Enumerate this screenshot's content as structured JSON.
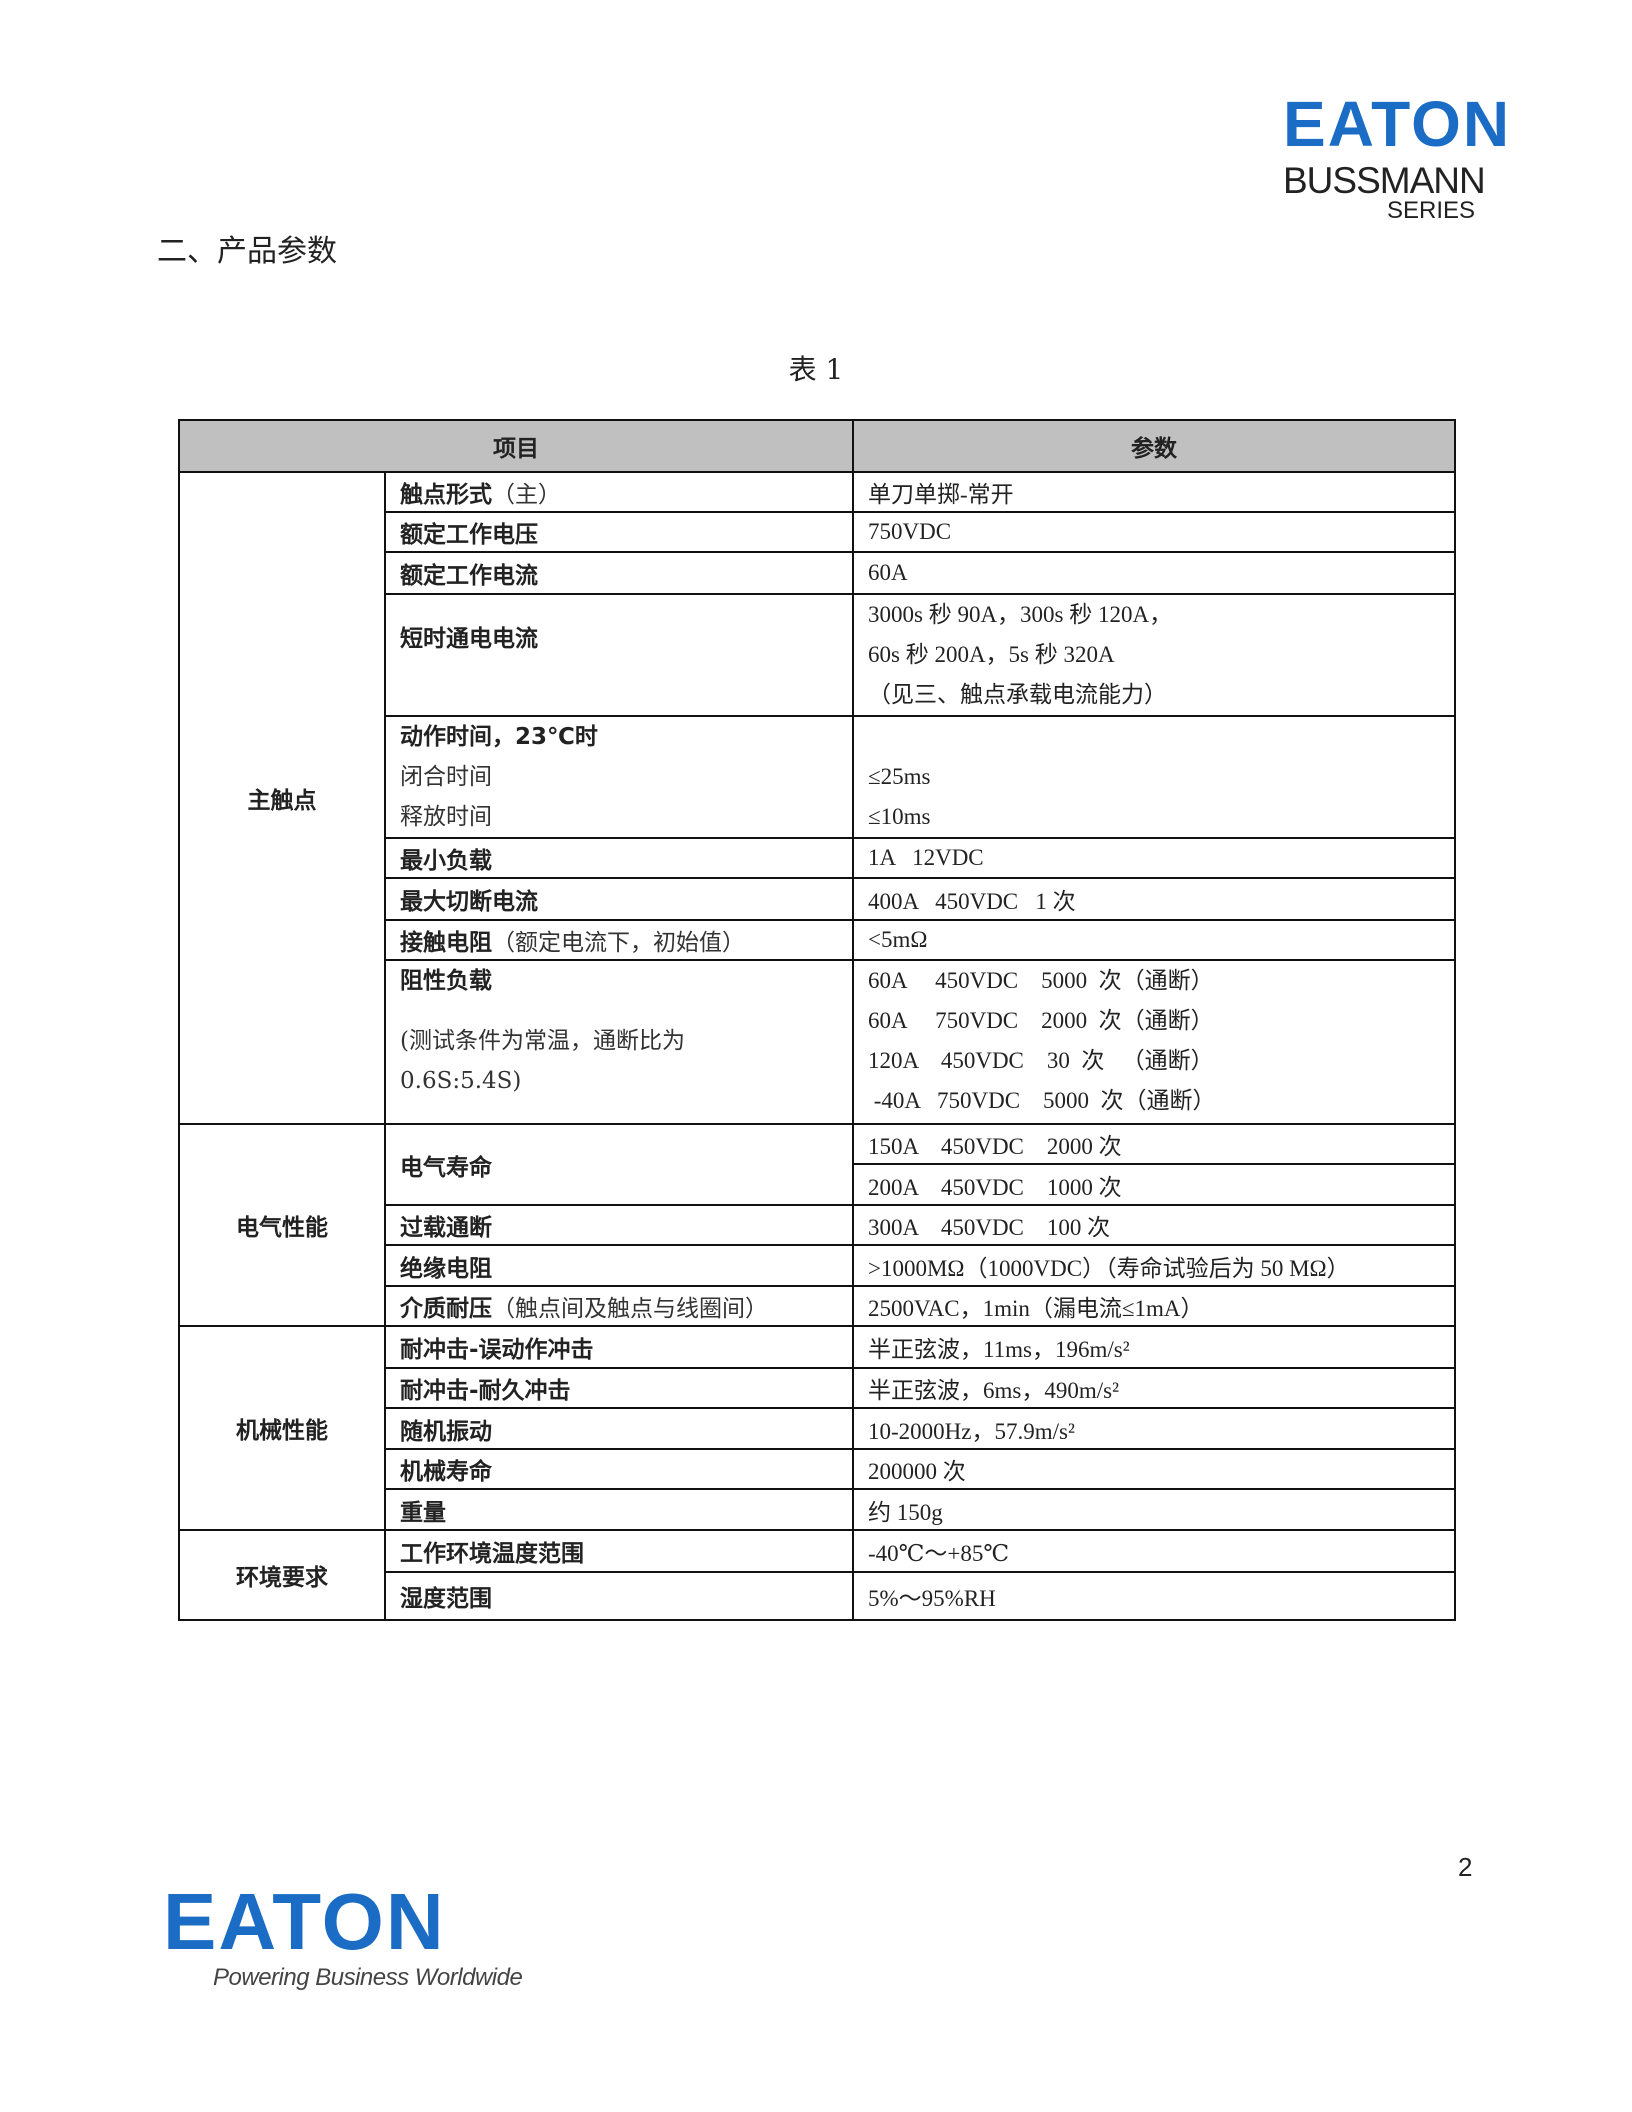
{
  "header_logo": {
    "brand": "EATON",
    "sub": "BUSSMANN",
    "series": "SERIES"
  },
  "section_title": "二、产品参数",
  "table_caption": "表 1",
  "table": {
    "headers": [
      "项目",
      "参数"
    ],
    "main_contact": {
      "category": "主触点",
      "rows": [
        {
          "item": "触点形式",
          "note": "（主）",
          "value": "单刀单掷-常开"
        },
        {
          "item": "额定工作电压",
          "value": "750VDC"
        },
        {
          "item": "额定工作电流",
          "value": "60A"
        },
        {
          "item": "短时通电电流",
          "values": [
            "3000s 秒 90A，300s 秒 120A，",
            "60s 秒 200A，5s 秒 320A",
            "（见三、触点承载电流能力）"
          ]
        },
        {
          "item": "动作时间，23℃时",
          "sub_items": [
            "闭合时间",
            "释放时间"
          ],
          "values": [
            "≤25ms",
            "≤10ms"
          ]
        },
        {
          "item": "最小负载",
          "value": "1A   12VDC"
        },
        {
          "item": "最大切断电流",
          "value": "400A   450VDC   1 次"
        },
        {
          "item": "接触电阻",
          "note": "（额定电流下，初始值）",
          "value": "<5mΩ"
        },
        {
          "item": "阻性负载",
          "notes": [
            "(测试条件为常温，通断比为",
            "0.6S:5.4S)"
          ],
          "values": [
            "60A     450VDC    5000  次（通断）",
            "60A     750VDC    2000  次（通断）",
            "120A    450VDC    30  次   （通断）",
            " -40A   750VDC    5000  次（通断）"
          ]
        }
      ]
    },
    "electrical": {
      "category": "电气性能",
      "rows": [
        {
          "item": "电气寿命",
          "values": [
            "150A    450VDC    2000 次",
            "200A    450VDC    1000 次"
          ]
        },
        {
          "item": "过载通断",
          "value": "300A    450VDC    100 次"
        },
        {
          "item": "绝缘电阻",
          "value": ">1000MΩ（1000VDC）（寿命试验后为 50 MΩ）"
        },
        {
          "item": "介质耐压",
          "note": "（触点间及触点与线圈间）",
          "value": "2500VAC，1min（漏电流≤1mA）"
        }
      ]
    },
    "mechanical": {
      "category": "机械性能",
      "rows": [
        {
          "item": "耐冲击-误动作冲击",
          "value": "半正弦波，11ms，196m/s²"
        },
        {
          "item": "耐冲击-耐久冲击",
          "value": "半正弦波，6ms，490m/s²"
        },
        {
          "item": "随机振动",
          "value": "10-2000Hz，57.9m/s²"
        },
        {
          "item": "机械寿命",
          "value": "200000 次"
        },
        {
          "item": "重量",
          "value": "约 150g"
        }
      ]
    },
    "environment": {
      "category": "环境要求",
      "rows": [
        {
          "item": "工作环境温度范围",
          "value": "-40℃～+85℃"
        },
        {
          "item": "湿度范围",
          "value": "5%～95%RH"
        }
      ]
    }
  },
  "page_number": "2",
  "footer_logo": {
    "brand": "EATON",
    "tagline": "Powering Business Worldwide"
  },
  "colors": {
    "brand_blue": "#1a6cc4",
    "header_gray": "#c0c0c0"
  }
}
